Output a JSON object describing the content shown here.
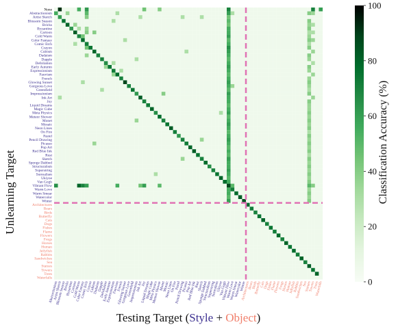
{
  "chart_data": {
    "type": "heatmap",
    "ylabel": "Unlearning Target",
    "xlabel": {
      "prefix": "Testing Target (",
      "style_word": "Style",
      "joiner": " + ",
      "object_word": "Object",
      "suffix": ")"
    },
    "colorbar": {
      "label": "Classification Accuracy (%)",
      "ticks": [
        0,
        20,
        40,
        60,
        80,
        100
      ],
      "range": [
        0,
        100
      ]
    },
    "row_labels": [
      "None",
      "Abstractionism",
      "Artist Sketch",
      "Blossom Season",
      "Bricks",
      "Byzantine",
      "Cartoon",
      "Cold Warm",
      "Color Fantasy",
      "Comic Etch",
      "Crayon",
      "Cubism",
      "Dadaism",
      "Dapple",
      "Defoliation",
      "Early Autumn",
      "Expressionism",
      "Fauvism",
      "French",
      "Glowing Sunset",
      "Gorgeous Love",
      "Greenfield",
      "Impressionism",
      "Ink Art",
      "Joy",
      "Liquid Dreams",
      "Magic Cube",
      "Meta Physics",
      "Meteor Shower",
      "Monet",
      "Mosaic",
      "Neon Lines",
      "On Fire",
      "Pastel",
      "Pencil Drawing",
      "Picasso",
      "Pop Art",
      "Red Blue Ink",
      "Rust",
      "Sketch",
      "Sponge Dabbed",
      "Structuralism",
      "Superstring",
      "Surrealism",
      "Ukiyoe",
      "Van Gogh",
      "Vibrant Flow",
      "Warm Love",
      "Warm Smear",
      "Watercolor",
      "Winter",
      "Architectures",
      "Bears",
      "Birds",
      "Butterfly",
      "Cats",
      "Dogs",
      "Fishes",
      "Flame",
      "Flowers",
      "Frogs",
      "Horses",
      "Human",
      "Jellyfish",
      "Rabbits",
      "Sandwiches",
      "Sea",
      "Statues",
      "Towers",
      "Trees",
      "Waterfalls"
    ],
    "col_labels": [
      "Abstractionism",
      "Artist Sketch",
      "Blossom Season",
      "Bricks",
      "Byzantine",
      "Cartoon",
      "Cold Warm",
      "Color Fantasy",
      "Comic Etch",
      "Crayon",
      "Cubism",
      "Dadaism",
      "Dapple",
      "Defoliation",
      "Early Autumn",
      "Expressionism",
      "Fauvism",
      "French",
      "Glowing Sunset",
      "Gorgeous Love",
      "Greenfield",
      "Impressionism",
      "Ink Art",
      "Joy",
      "Liquid Dreams",
      "Magic Cube",
      "Meta Physics",
      "Meteor Shower",
      "Monet",
      "Mosaic",
      "Neon Lines",
      "On Fire",
      "Pastel",
      "Pencil Drawing",
      "Picasso",
      "Pop Art",
      "Red Blue Ink",
      "Rust",
      "Sketch",
      "Sponge Dabbed",
      "Structuralism",
      "Superstring",
      "Surrealism",
      "Ukiyoe",
      "Van Gogh",
      "Vibrant Flow",
      "Warm Love",
      "Warm Smear",
      "Watercolor",
      "Winter",
      "Architectures",
      "Bears",
      "Birds",
      "Butterfly",
      "Cats",
      "Dogs",
      "Fishes",
      "Flame",
      "Flowers",
      "Frogs",
      "Horses",
      "Human",
      "Jellyfish",
      "Rabbits",
      "Sandwiches",
      "Sea",
      "Statues",
      "Towers",
      "Trees",
      "Waterfalls"
    ],
    "style_count": 50,
    "colors": {
      "style_label": "#3b2f8f",
      "object_label": "#f07e6a",
      "divider": "#e072b4",
      "colormap": [
        "#f7fcf5",
        "#e5f5e0",
        "#c7e9c0",
        "#a1d99b",
        "#74c476",
        "#41ab5d",
        "#238b45",
        "#006d2c",
        "#00441b",
        "#000000"
      ]
    },
    "cells": [
      [
        0,
        1,
        92
      ],
      [
        0,
        6,
        55
      ],
      [
        0,
        8,
        62
      ],
      [
        0,
        23,
        45
      ],
      [
        0,
        27,
        40
      ],
      [
        0,
        45,
        70
      ],
      [
        0,
        67,
        70
      ],
      [
        0,
        69,
        60
      ],
      [
        1,
        0,
        55
      ],
      [
        1,
        3,
        35
      ],
      [
        1,
        8,
        50
      ],
      [
        1,
        16,
        30
      ],
      [
        1,
        45,
        60
      ],
      [
        1,
        46,
        30
      ],
      [
        1,
        66,
        40
      ],
      [
        1,
        67,
        35
      ],
      [
        2,
        1,
        60
      ],
      [
        2,
        8,
        40
      ],
      [
        2,
        22,
        30
      ],
      [
        2,
        33,
        30
      ],
      [
        2,
        38,
        30
      ],
      [
        2,
        45,
        45
      ],
      [
        3,
        2,
        75
      ],
      [
        3,
        15,
        30
      ],
      [
        3,
        45,
        50
      ],
      [
        3,
        66,
        40
      ],
      [
        4,
        3,
        80
      ],
      [
        4,
        5,
        35
      ],
      [
        4,
        45,
        45
      ],
      [
        4,
        66,
        35
      ],
      [
        4,
        67,
        30
      ],
      [
        5,
        4,
        62
      ],
      [
        5,
        6,
        30
      ],
      [
        5,
        8,
        35
      ],
      [
        5,
        45,
        55
      ],
      [
        5,
        66,
        40
      ],
      [
        6,
        5,
        82
      ],
      [
        6,
        8,
        40
      ],
      [
        6,
        10,
        40
      ],
      [
        6,
        45,
        55
      ],
      [
        6,
        66,
        30
      ],
      [
        6,
        67,
        30
      ],
      [
        7,
        6,
        68
      ],
      [
        7,
        7,
        45
      ],
      [
        7,
        45,
        60
      ],
      [
        7,
        66,
        35
      ],
      [
        8,
        7,
        78
      ],
      [
        8,
        18,
        30
      ],
      [
        8,
        45,
        50
      ],
      [
        8,
        66,
        40
      ],
      [
        8,
        67,
        35
      ],
      [
        9,
        8,
        72
      ],
      [
        9,
        5,
        30
      ],
      [
        9,
        45,
        55
      ],
      [
        9,
        66,
        30
      ],
      [
        10,
        9,
        75
      ],
      [
        10,
        8,
        45
      ],
      [
        10,
        45,
        65
      ],
      [
        10,
        66,
        40
      ],
      [
        11,
        10,
        80
      ],
      [
        11,
        34,
        30
      ],
      [
        11,
        45,
        60
      ],
      [
        11,
        67,
        35
      ],
      [
        12,
        11,
        70
      ],
      [
        12,
        8,
        35
      ],
      [
        12,
        45,
        55
      ],
      [
        12,
        66,
        40
      ],
      [
        13,
        12,
        70
      ],
      [
        13,
        21,
        30
      ],
      [
        13,
        45,
        50
      ],
      [
        13,
        66,
        35
      ],
      [
        14,
        13,
        66
      ],
      [
        14,
        15,
        30
      ],
      [
        14,
        45,
        55
      ],
      [
        14,
        67,
        30
      ],
      [
        15,
        14,
        75
      ],
      [
        15,
        13,
        35
      ],
      [
        15,
        45,
        60
      ],
      [
        15,
        66,
        40
      ],
      [
        16,
        15,
        72
      ],
      [
        16,
        17,
        30
      ],
      [
        16,
        45,
        55
      ],
      [
        16,
        66,
        35
      ],
      [
        17,
        16,
        78
      ],
      [
        17,
        15,
        35
      ],
      [
        17,
        45,
        50
      ],
      [
        17,
        67,
        35
      ],
      [
        18,
        17,
        70
      ],
      [
        18,
        45,
        55
      ],
      [
        18,
        66,
        35
      ],
      [
        19,
        18,
        88
      ],
      [
        19,
        7,
        30
      ],
      [
        19,
        45,
        60
      ],
      [
        19,
        66,
        40
      ],
      [
        20,
        19,
        70
      ],
      [
        20,
        46,
        35
      ],
      [
        20,
        45,
        55
      ],
      [
        20,
        66,
        35
      ],
      [
        21,
        20,
        75
      ],
      [
        21,
        12,
        30
      ],
      [
        21,
        45,
        50
      ],
      [
        21,
        66,
        30
      ],
      [
        22,
        21,
        62
      ],
      [
        22,
        28,
        40
      ],
      [
        22,
        45,
        60
      ],
      [
        22,
        66,
        40
      ],
      [
        23,
        22,
        82
      ],
      [
        23,
        1,
        30
      ],
      [
        23,
        45,
        55
      ],
      [
        23,
        67,
        35
      ],
      [
        24,
        23,
        70
      ],
      [
        24,
        45,
        55
      ],
      [
        24,
        66,
        40
      ],
      [
        25,
        24,
        72
      ],
      [
        25,
        45,
        50
      ],
      [
        25,
        66,
        35
      ],
      [
        26,
        25,
        80
      ],
      [
        26,
        45,
        55
      ],
      [
        26,
        66,
        35
      ],
      [
        27,
        26,
        66
      ],
      [
        27,
        43,
        30
      ],
      [
        27,
        45,
        60
      ],
      [
        27,
        66,
        40
      ],
      [
        28,
        27,
        78
      ],
      [
        28,
        45,
        50
      ],
      [
        28,
        66,
        35
      ],
      [
        29,
        28,
        70
      ],
      [
        29,
        21,
        35
      ],
      [
        29,
        45,
        55
      ],
      [
        29,
        66,
        40
      ],
      [
        30,
        29,
        75
      ],
      [
        30,
        45,
        60
      ],
      [
        30,
        66,
        35
      ],
      [
        31,
        30,
        82
      ],
      [
        31,
        45,
        55
      ],
      [
        31,
        66,
        40
      ],
      [
        32,
        31,
        72
      ],
      [
        32,
        45,
        50
      ],
      [
        32,
        66,
        30
      ],
      [
        33,
        32,
        62
      ],
      [
        33,
        45,
        55
      ],
      [
        33,
        66,
        40
      ],
      [
        34,
        33,
        70
      ],
      [
        34,
        38,
        35
      ],
      [
        34,
        45,
        60
      ],
      [
        34,
        66,
        35
      ],
      [
        35,
        34,
        72
      ],
      [
        35,
        10,
        35
      ],
      [
        35,
        45,
        55
      ],
      [
        35,
        66,
        40
      ],
      [
        36,
        35,
        80
      ],
      [
        36,
        45,
        50
      ],
      [
        36,
        66,
        35
      ],
      [
        37,
        36,
        82
      ],
      [
        37,
        45,
        55
      ],
      [
        37,
        66,
        40
      ],
      [
        38,
        37,
        75
      ],
      [
        38,
        45,
        50
      ],
      [
        38,
        66,
        30
      ],
      [
        39,
        38,
        70
      ],
      [
        39,
        33,
        35
      ],
      [
        39,
        45,
        60
      ],
      [
        39,
        66,
        40
      ],
      [
        40,
        39,
        78
      ],
      [
        40,
        45,
        55
      ],
      [
        40,
        66,
        35
      ],
      [
        41,
        40,
        66
      ],
      [
        41,
        45,
        55
      ],
      [
        41,
        66,
        40
      ],
      [
        42,
        41,
        70
      ],
      [
        42,
        45,
        60
      ],
      [
        42,
        66,
        35
      ],
      [
        43,
        42,
        75
      ],
      [
        43,
        26,
        30
      ],
      [
        43,
        45,
        55
      ],
      [
        43,
        66,
        40
      ],
      [
        44,
        43,
        80
      ],
      [
        44,
        45,
        50
      ],
      [
        44,
        66,
        35
      ],
      [
        45,
        44,
        78
      ],
      [
        45,
        45,
        55
      ],
      [
        45,
        66,
        40
      ],
      [
        46,
        0,
        65
      ],
      [
        46,
        6,
        80
      ],
      [
        46,
        7,
        70
      ],
      [
        46,
        8,
        60
      ],
      [
        46,
        16,
        55
      ],
      [
        46,
        22,
        45
      ],
      [
        46,
        23,
        60
      ],
      [
        46,
        27,
        50
      ],
      [
        46,
        45,
        88
      ],
      [
        46,
        46,
        50
      ],
      [
        46,
        66,
        50
      ],
      [
        46,
        67,
        40
      ],
      [
        47,
        46,
        72
      ],
      [
        47,
        45,
        55
      ],
      [
        47,
        66,
        35
      ],
      [
        48,
        47,
        78
      ],
      [
        48,
        45,
        55
      ],
      [
        48,
        66,
        40
      ],
      [
        49,
        48,
        82
      ],
      [
        49,
        45,
        50
      ],
      [
        49,
        66,
        35
      ],
      [
        50,
        49,
        85
      ],
      [
        50,
        45,
        60
      ],
      [
        50,
        66,
        40
      ],
      [
        51,
        50,
        78
      ],
      [
        52,
        51,
        72
      ],
      [
        53,
        52,
        70
      ],
      [
        54,
        53,
        75
      ],
      [
        55,
        54,
        80
      ],
      [
        56,
        55,
        70
      ],
      [
        57,
        56,
        75
      ],
      [
        58,
        57,
        72
      ],
      [
        59,
        58,
        78
      ],
      [
        60,
        59,
        70
      ],
      [
        61,
        60,
        80
      ],
      [
        62,
        61,
        75
      ],
      [
        63,
        62,
        78
      ],
      [
        64,
        63,
        72
      ],
      [
        65,
        64,
        80
      ],
      [
        66,
        65,
        70
      ],
      [
        67,
        66,
        82
      ],
      [
        68,
        67,
        75
      ],
      [
        69,
        68,
        80
      ]
    ]
  }
}
